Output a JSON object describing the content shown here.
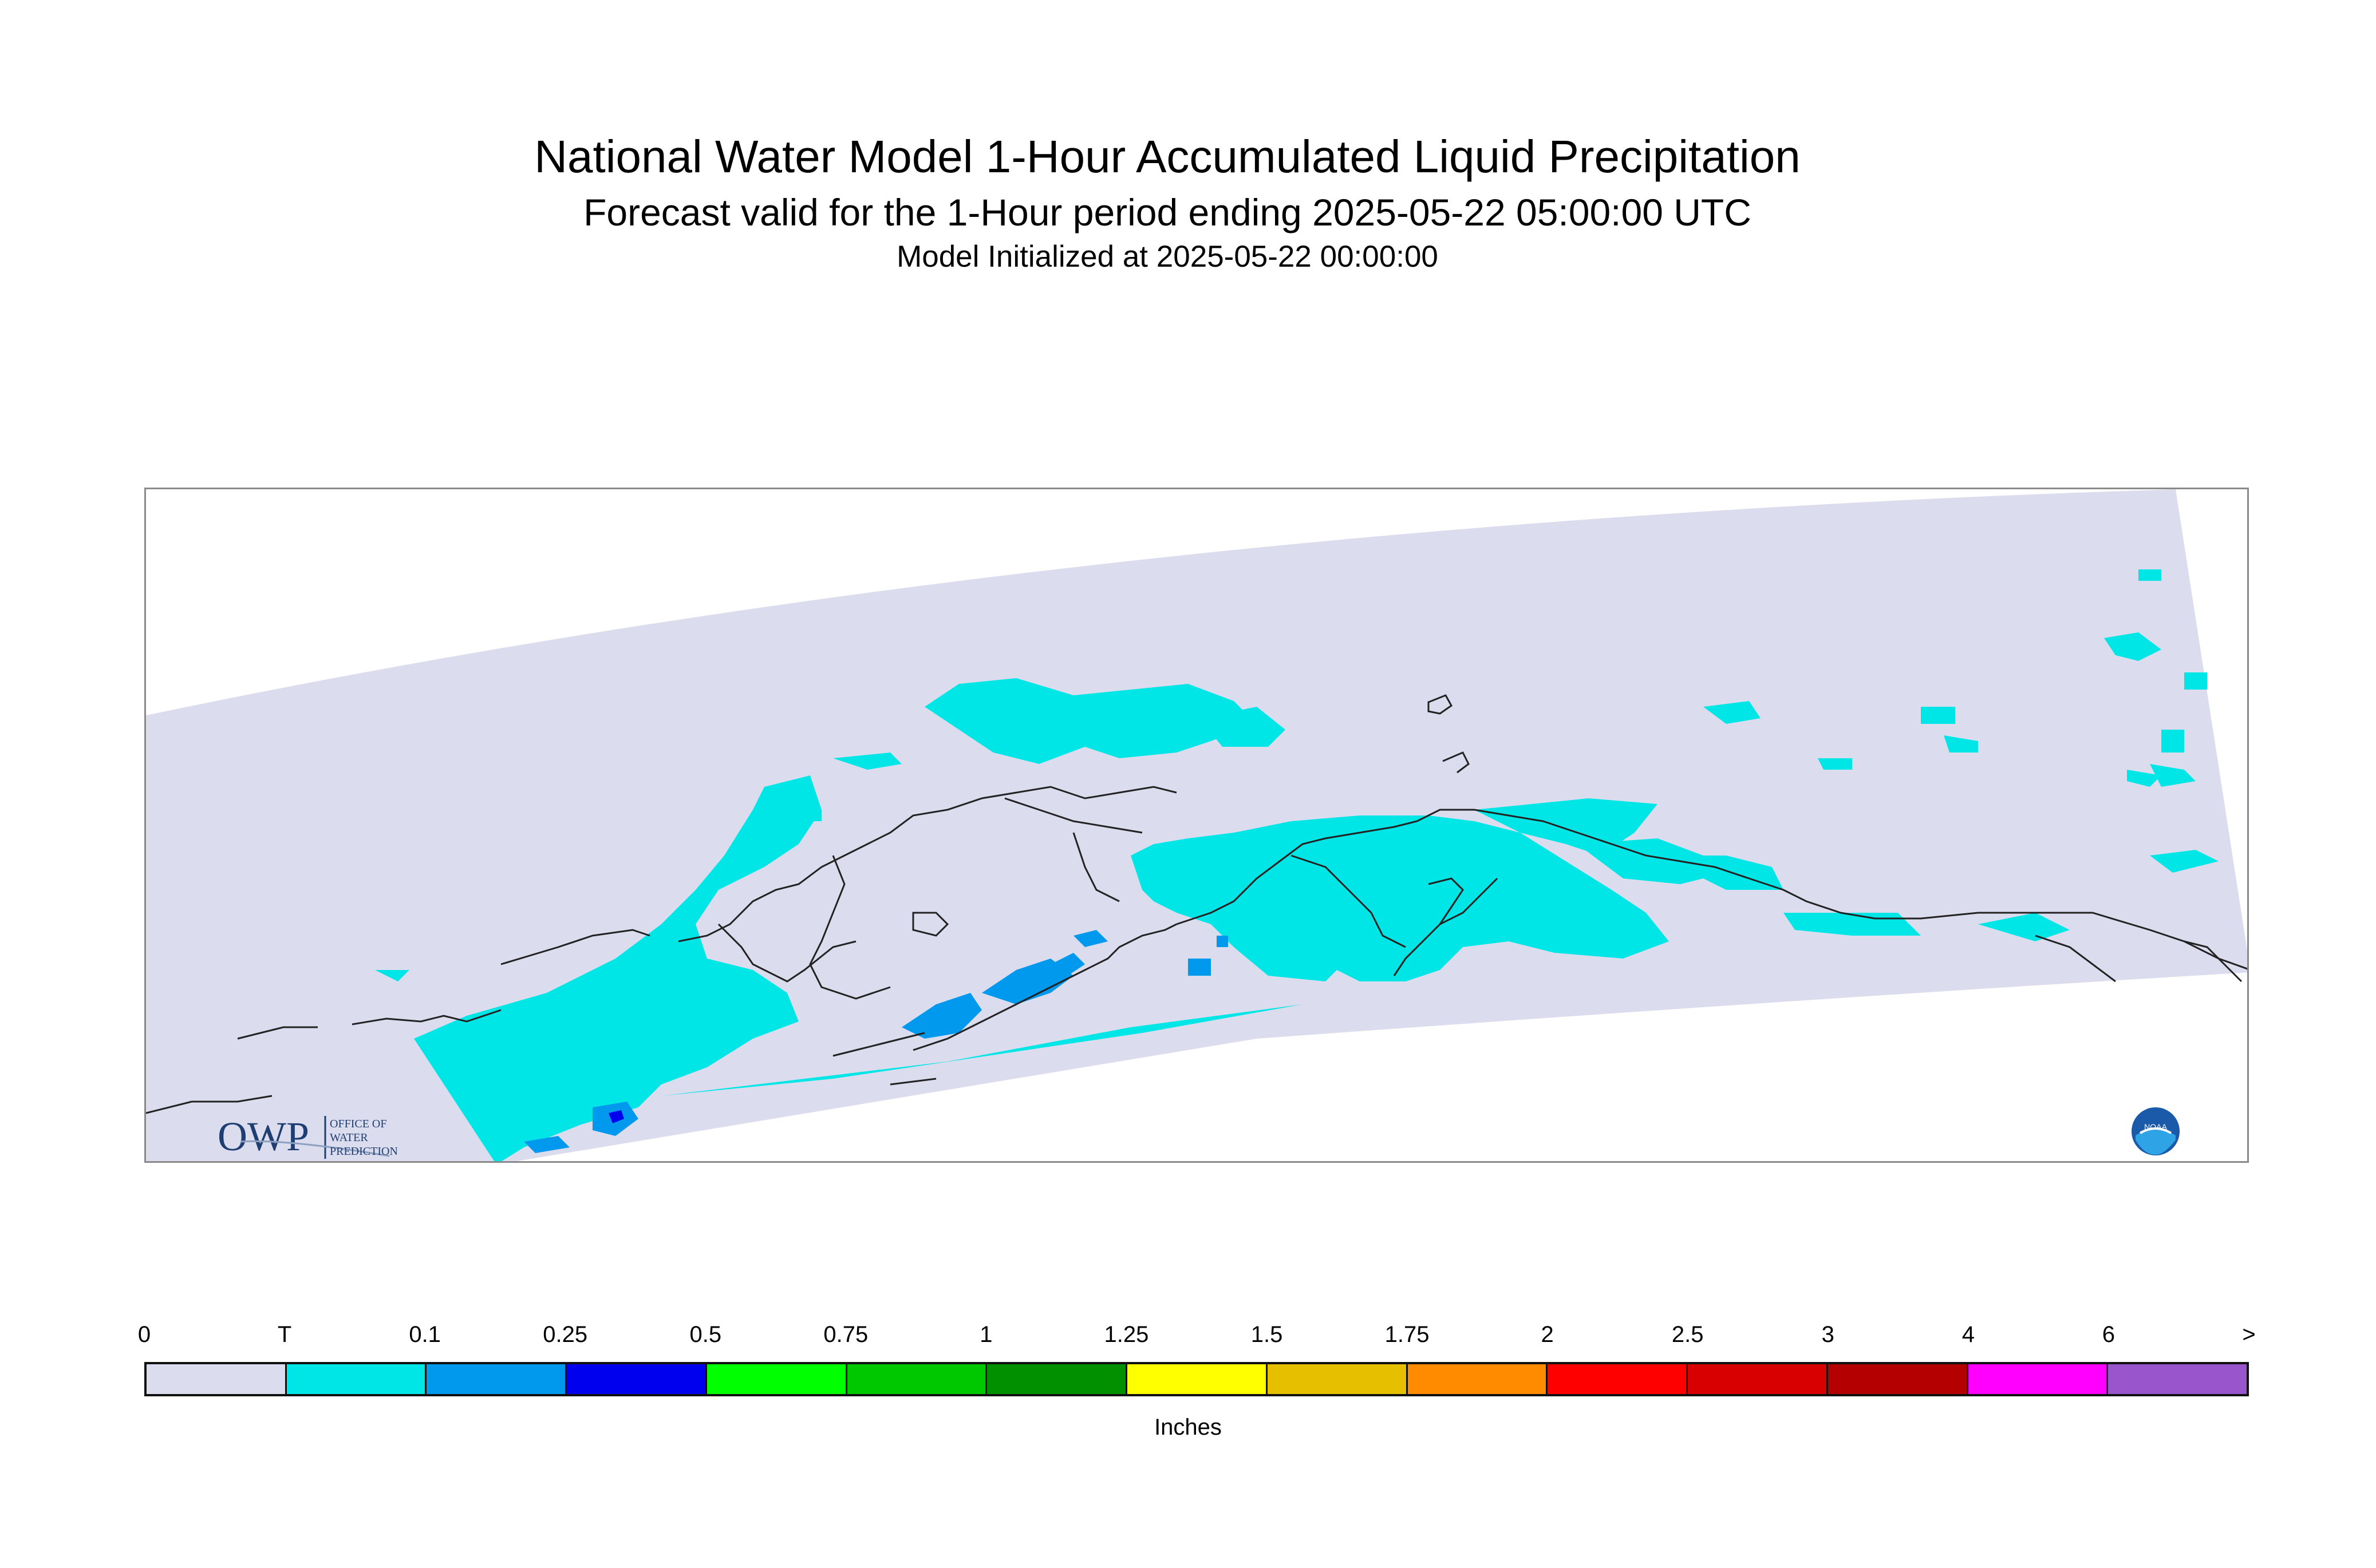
{
  "header": {
    "title": "National Water Model 1-Hour Accumulated Liquid Precipitation",
    "subtitle": "Forecast valid for the 1-Hour period ending 2025-05-22 05:00:00 UTC",
    "initialized": "Model Initialized at 2025-05-22 00:00:00"
  },
  "logos": {
    "owp": {
      "mark": "OWP",
      "text_lines": [
        "OFFICE OF",
        "WATER",
        "PREDICTION"
      ]
    },
    "noaa": {
      "text": "NOAA"
    }
  },
  "colors": {
    "domain_fill": "#dcdcef",
    "precip_trace": "#00e6e6",
    "precip_light": "#0099ee",
    "precip_dark": "#0000ee",
    "coastline": "#222222"
  },
  "legend": {
    "tick_labels": [
      "0",
      "T",
      "0.1",
      "0.25",
      "0.5",
      "0.75",
      "1",
      "1.25",
      "1.5",
      "1.75",
      "2",
      "2.5",
      "3",
      "4",
      "6",
      ">"
    ],
    "colors": [
      "#dcdcef",
      "#00e6e6",
      "#0099ee",
      "#0000ee",
      "#00ff00",
      "#00c800",
      "#009000",
      "#ffff00",
      "#e6c000",
      "#ff8c00",
      "#ff0000",
      "#d80000",
      "#b40000",
      "#ff00ff",
      "#9955cc"
    ],
    "units": "Inches"
  }
}
